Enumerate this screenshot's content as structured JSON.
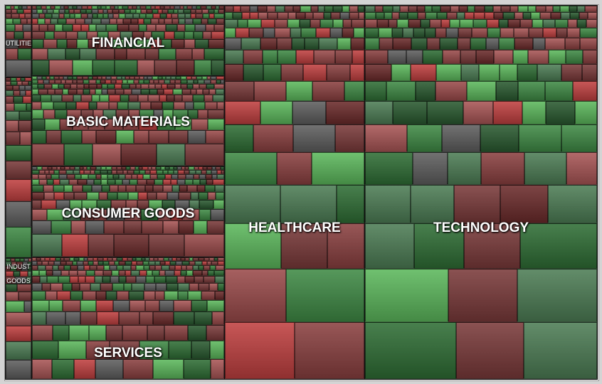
{
  "chart_data": {
    "type": "treemap",
    "title": "",
    "color_scale": {
      "negative": "#c0302f",
      "neutral": "#5e5e5e",
      "positive": "#3a9a40"
    },
    "palette": [
      "#7a3a3a",
      "#2f6e35",
      "#9a4a4a",
      "#3f8a45",
      "#5e5e5e",
      "#c04040",
      "#5cb85c",
      "#6b2b2b",
      "#4d7d55",
      "#a85555",
      "#2a5a30",
      "#8a4040"
    ],
    "sectors": [
      {
        "id": "utilities",
        "label": "UTILITIES",
        "label_text": "UTILITIE"
      },
      {
        "id": "unlabeled",
        "label": ""
      },
      {
        "id": "industrial-goods",
        "label": "INDUSTRIAL GOODS",
        "label_text": "INDUST\nGOODS"
      },
      {
        "id": "financial",
        "label": "FINANCIAL"
      },
      {
        "id": "basic-materials",
        "label": "BASIC MATERIALS"
      },
      {
        "id": "consumer-goods",
        "label": "CONSUMER GOODS"
      },
      {
        "id": "services",
        "label": "SERVICES"
      },
      {
        "id": "healthcare",
        "label": "HEALTHCARE"
      },
      {
        "id": "technology",
        "label": "TECHNOLOGY"
      }
    ]
  }
}
